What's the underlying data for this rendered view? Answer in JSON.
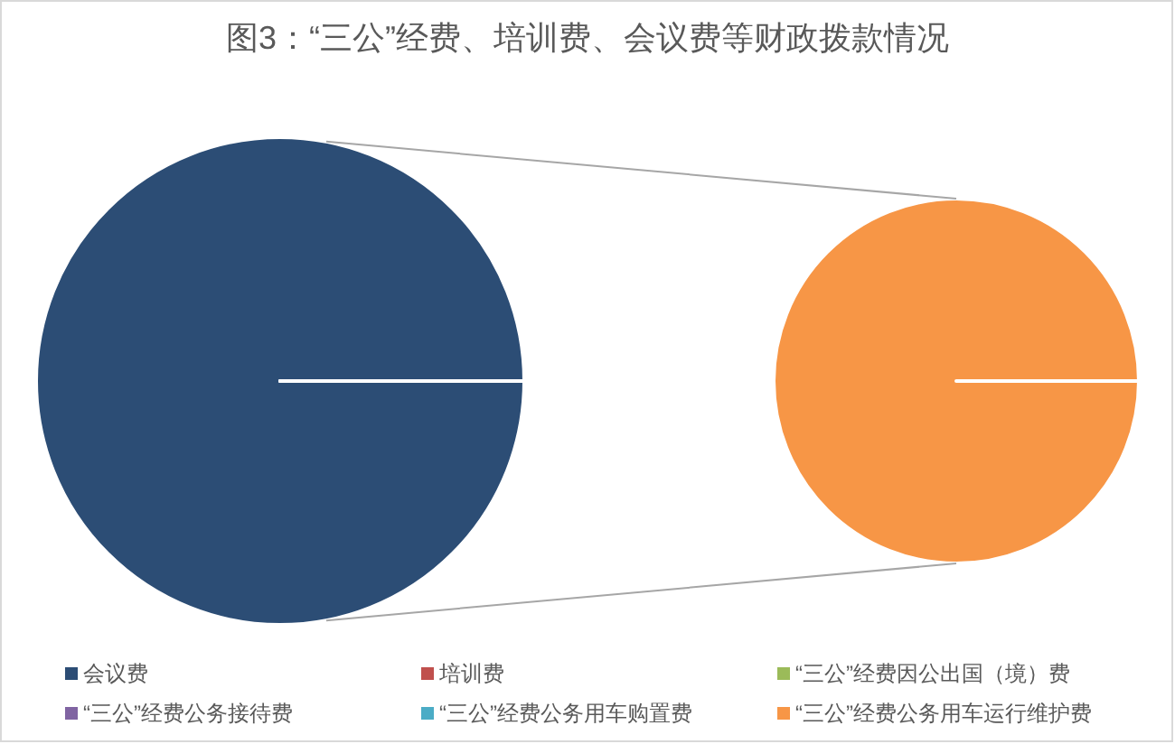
{
  "chart_data": [
    {
      "type": "pie",
      "title": "图3：“三公”经费、培训费、会议费等财政拨款情况",
      "categories": [
        "会议费",
        "培训费",
        "“三公”经费因公出国（境）费",
        "“三公”经费公务接待费"
      ],
      "values": [
        100,
        0,
        0,
        0
      ],
      "colors": [
        "#2c4d75",
        "#c0504d",
        "#9bbb59",
        "#8064a2"
      ],
      "legend": "bottom"
    },
    {
      "type": "pie",
      "categories": [
        "“三公”经费公务用车购置费",
        "“三公”经费公务用车运行维护费"
      ],
      "values": [
        0,
        100
      ],
      "colors": [
        "#4bacc6",
        "#f79646"
      ],
      "legend": "bottom"
    }
  ]
}
